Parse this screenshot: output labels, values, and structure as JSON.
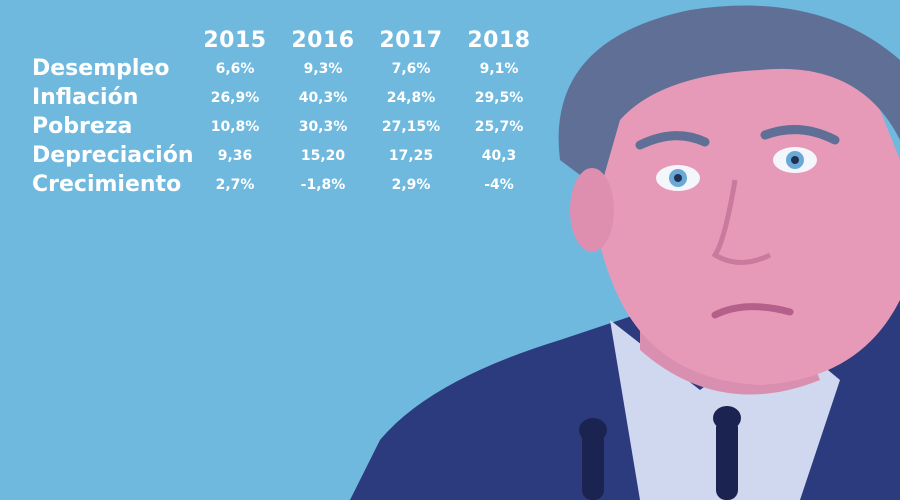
{
  "table": {
    "years": [
      "2015",
      "2016",
      "2017",
      "2018"
    ],
    "rows": [
      {
        "label": "Desempleo",
        "values": [
          "6,6%",
          "9,3%",
          "7,6%",
          "9,1%"
        ]
      },
      {
        "label": "Inflación",
        "values": [
          "26,9%",
          "40,3%",
          "24,8%",
          "29,5%"
        ]
      },
      {
        "label": "Pobreza",
        "values": [
          "10,8%",
          "30,3%",
          "27,15%",
          "25,7%"
        ]
      },
      {
        "label": "Depreciación",
        "values": [
          "9,36",
          "15,20",
          "17,25",
          "40,3"
        ]
      },
      {
        "label": "Crecimiento",
        "values": [
          "2,7%",
          "-1,8%",
          "2,9%",
          "-4%"
        ]
      }
    ]
  },
  "colors": {
    "background": "#6fb9df",
    "text": "#ffffff",
    "suit": "#2c3a7e",
    "skin": "#e79ab8",
    "hair": "#5f6f95",
    "shirt": "#cfd8ee"
  }
}
